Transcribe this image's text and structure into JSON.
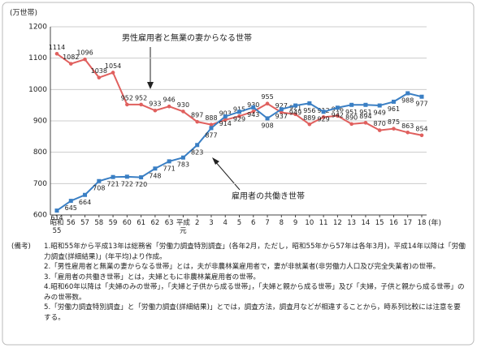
{
  "chart_data": {
    "type": "line",
    "y_unit_label": "(万世帯)",
    "x_unit_label": "(年)",
    "categories": [
      "昭和\n55",
      "56",
      "57",
      "58",
      "59",
      "60",
      "61",
      "62",
      "63",
      "平成\n元",
      "2",
      "3",
      "4",
      "5",
      "6",
      "7",
      "8",
      "9",
      "10",
      "11",
      "12",
      "13",
      "14",
      "15",
      "16",
      "17",
      "18"
    ],
    "series": [
      {
        "name": "男性雇用者と無業の妻からなる世帯",
        "color": "#e0605e",
        "marker": "circle",
        "values": [
          1114,
          1082,
          1096,
          1038,
          1054,
          952,
          952,
          933,
          946,
          930,
          897,
          888,
          903,
          915,
          930,
          955,
          927,
          921,
          889,
          912,
          916,
          890,
          894,
          870,
          875,
          863,
          854
        ]
      },
      {
        "name": "雇用者の共働き世帯",
        "color": "#3a7fc4",
        "marker": "square",
        "values": [
          614,
          645,
          664,
          708,
          721,
          722,
          720,
          748,
          771,
          783,
          823,
          877,
          914,
          929,
          943,
          908,
          937,
          949,
          956,
          929,
          942,
          951,
          951,
          949,
          961,
          988,
          977
        ]
      }
    ],
    "ylim": [
      600,
      1200
    ],
    "yticks": [
      600,
      700,
      800,
      900,
      1000,
      1100,
      1200
    ],
    "grid": true,
    "notes_heading": "(備考)",
    "notes": [
      "1.昭和55年から平成13年は総務省「労働力調査特別調査」(各年2月，ただし，昭和55年から57年は各年3月)，平成14年以降は「労働力調査(詳細結果)」(年平均)より作成。",
      "2.「男性雇用者と無業の妻からなる世帯」とは，夫が非農林業雇用者で，妻が非就業者(非労働力人口及び完全失業者)の世帯。",
      "3.「雇用者の共働き世帯」とは，夫婦ともに非農林業雇用者の世帯。",
      "4.昭和60年以降は「夫婦のみの世帯」，「夫婦と子供から成る世帯」，「夫婦と親から成る世帯」及び「夫婦，子供と親から成る世帯」のみの世帯数。",
      "5.「労働力調査特別調査」と「労働力調査(詳細結果)」とでは，調査方法，調査月などが相違することから，時系列比較には注意を要する。"
    ]
  }
}
